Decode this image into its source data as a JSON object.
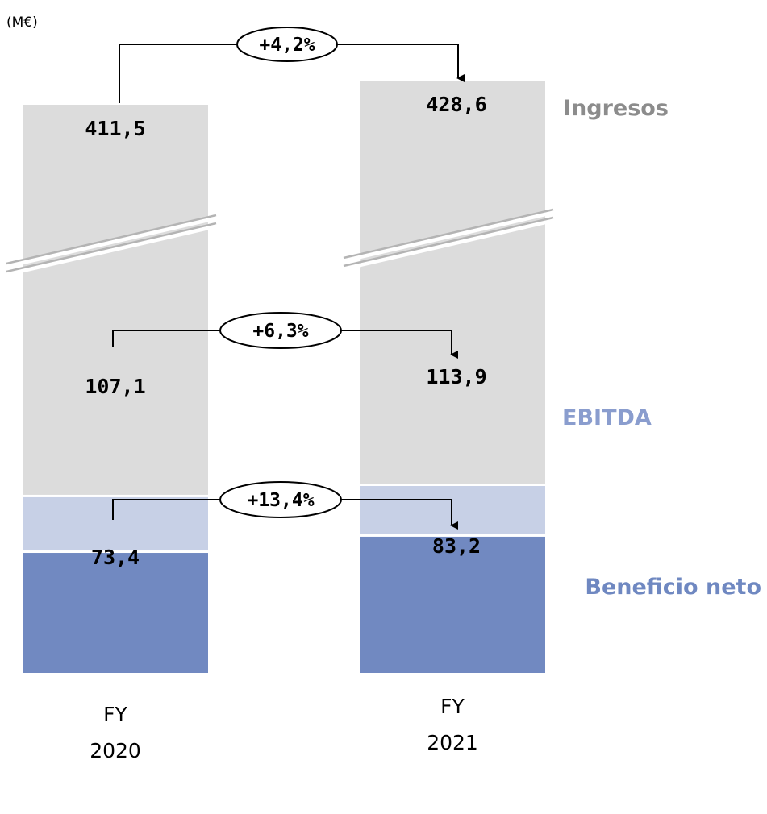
{
  "unit_label": "(M€)",
  "colors": {
    "ingresos": "#dcdcdc",
    "ebitda": "#c7d0e6",
    "beneficio": "#7189c1",
    "ingresos_label": "#8c8c8c",
    "ebitda_label": "#8a9dce",
    "beneficio_label": "#6f88c1",
    "break_line": "#b4b4b4"
  },
  "chart_data": {
    "type": "bar",
    "stacked": true,
    "broken_axis": true,
    "unit": "(M€)",
    "categories": [
      {
        "line1": "FY",
        "line2": "2020"
      },
      {
        "line1": "FY",
        "line2": "2021"
      }
    ],
    "series": [
      {
        "name": "Ingresos",
        "values": [
          411.5,
          428.6
        ],
        "labels": [
          "411,5",
          "428,6"
        ]
      },
      {
        "name": "EBITDA",
        "values": [
          107.1,
          113.9
        ],
        "labels": [
          "107,1",
          "113,9"
        ]
      },
      {
        "name": "Beneficio neto",
        "values": [
          73.4,
          83.2
        ],
        "labels": [
          "73,4",
          "83,2"
        ]
      }
    ],
    "growth": [
      {
        "series": "Ingresos",
        "label": "+4,2%"
      },
      {
        "series": "EBITDA",
        "label": "+6,3%"
      },
      {
        "series": "Beneficio neto",
        "label": "+13,4%"
      }
    ]
  }
}
